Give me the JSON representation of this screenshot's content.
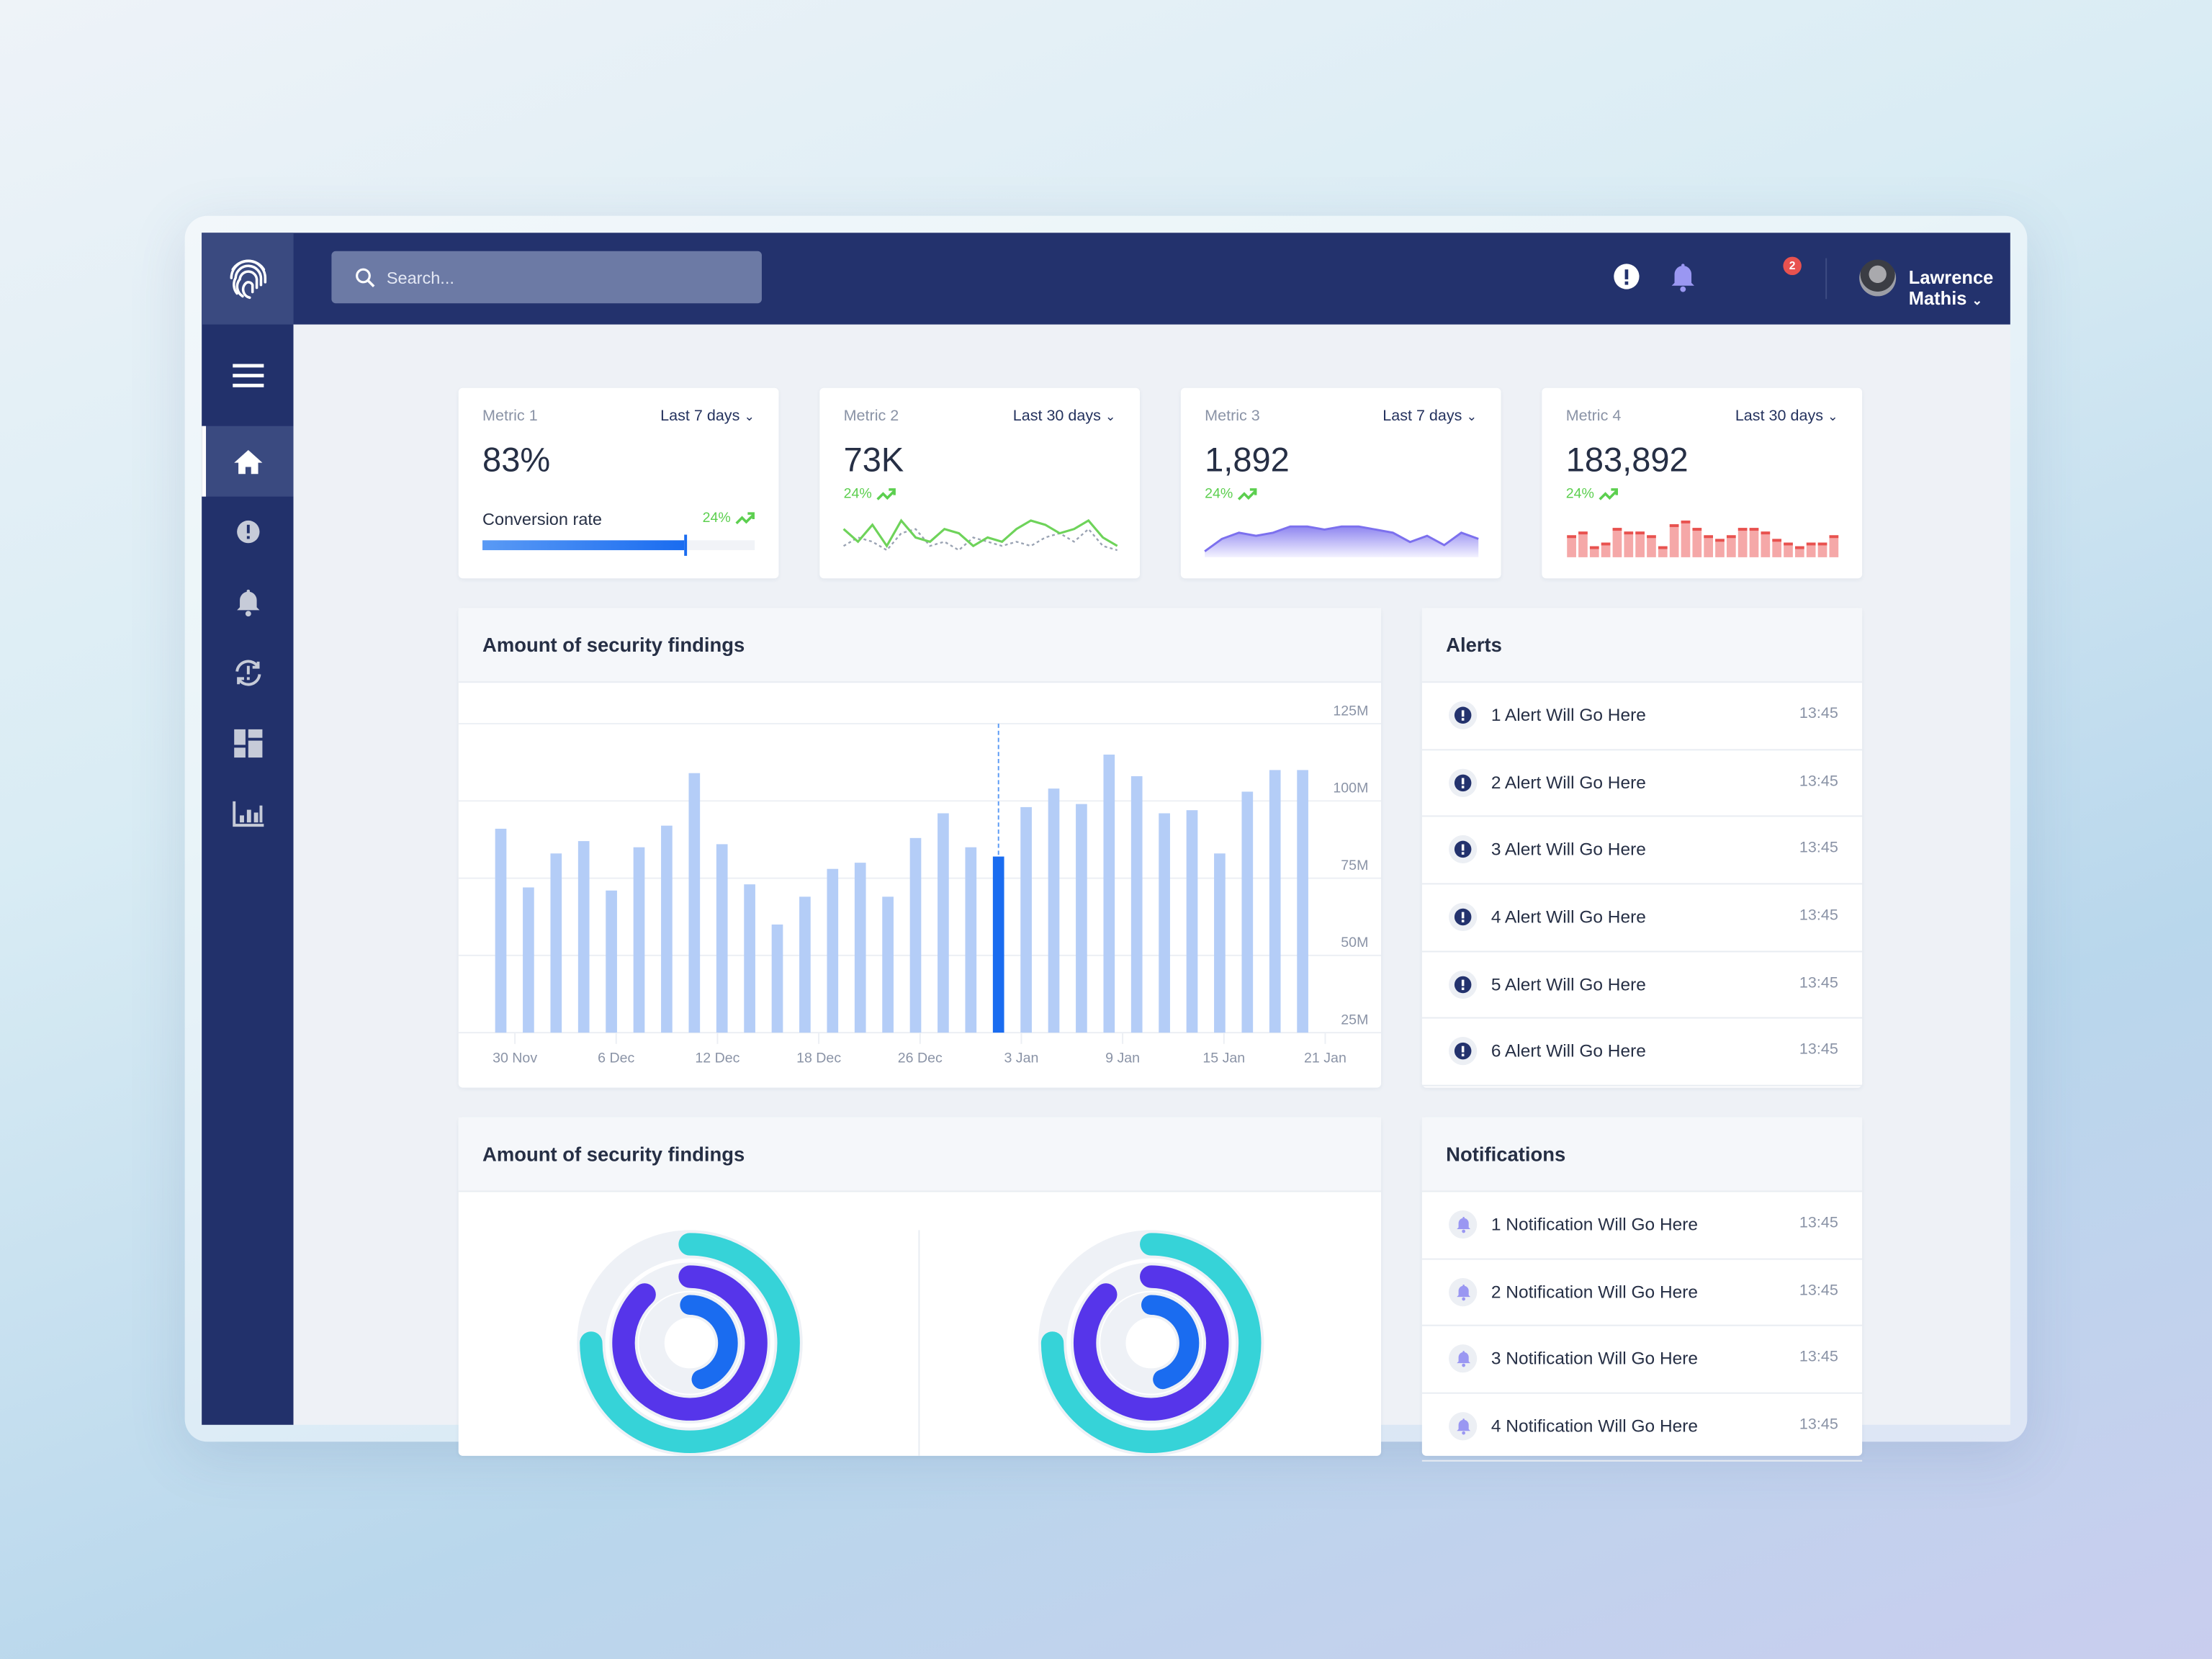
{
  "header": {
    "search_placeholder": "Search...",
    "notification_count": "2",
    "user_name": "Lawrence Mathis"
  },
  "sidebar": {
    "items": [
      {
        "icon": "home-icon",
        "active": true
      },
      {
        "icon": "alert-icon"
      },
      {
        "icon": "bell-icon"
      },
      {
        "icon": "sync-alert-icon"
      },
      {
        "icon": "dashboard-icon"
      },
      {
        "icon": "bar-chart-icon"
      }
    ]
  },
  "metrics": [
    {
      "label": "Metric 1",
      "range": "Last 7 days",
      "value": "83%",
      "sub_label": "Conversion rate",
      "delta": "24%",
      "progress_percent": 74
    },
    {
      "label": "Metric 2",
      "range": "Last 30 days",
      "value": "73K",
      "delta": "24%",
      "spark": [
        6,
        3,
        7,
        2,
        8,
        4,
        3,
        6,
        5,
        2,
        4,
        3,
        6,
        8,
        7,
        5,
        6,
        8,
        4,
        2
      ],
      "spark_dotted": [
        2,
        4,
        3,
        1,
        5,
        6,
        2,
        3,
        1,
        4,
        3,
        2,
        3,
        2,
        4,
        5,
        3,
        6,
        2,
        1
      ]
    },
    {
      "label": "Metric 3",
      "range": "Last 7 days",
      "value": "1,892",
      "delta": "24%",
      "area": [
        1,
        5,
        7,
        6,
        7,
        9,
        9,
        8,
        9,
        9,
        8,
        7,
        4,
        6,
        3,
        7,
        5
      ]
    },
    {
      "label": "Metric 4",
      "range": "Last 30 days",
      "value": "183,892",
      "delta": "24%",
      "bars": [
        6,
        7,
        3,
        4,
        8,
        7,
        7,
        6,
        3,
        9,
        10,
        8,
        6,
        5,
        6,
        8,
        8,
        7,
        5,
        4,
        3,
        4,
        4,
        6
      ]
    }
  ],
  "colors": {
    "navy": "#22316b",
    "accent_blue": "#1a6cf0",
    "bar_light": "#b4cdf7",
    "green": "#5ccf4f",
    "teal": "#36d3d8",
    "purple": "#5635ea",
    "red": "#f5a8a8"
  },
  "findings_chart": {
    "title": "Amount of security findings"
  },
  "chart_data": {
    "type": "bar",
    "title": "Amount of security findings",
    "y_ticks": [
      "125M",
      "100M",
      "75M",
      "50M",
      "25M"
    ],
    "ylim": [
      25,
      125
    ],
    "y_unit": "M",
    "x_ticks": [
      "30 Nov",
      "6 Dec",
      "12 Dec",
      "18 Dec",
      "26 Dec",
      "3 Jan",
      "9 Jan",
      "15 Jan",
      "21 Jan"
    ],
    "values": [
      91,
      72,
      83,
      87,
      71,
      85,
      92,
      109,
      86,
      73,
      60,
      69,
      78,
      80,
      69,
      88,
      96,
      85,
      82,
      98,
      104,
      99,
      115,
      108,
      96,
      97,
      83,
      103,
      110,
      110
    ],
    "highlighted_index": 18,
    "grid": true
  },
  "alerts": {
    "title": "Alerts",
    "items": [
      {
        "text": "1 Alert Will Go Here",
        "time": "13:45"
      },
      {
        "text": "2 Alert Will Go Here",
        "time": "13:45"
      },
      {
        "text": "3 Alert Will Go Here",
        "time": "13:45"
      },
      {
        "text": "4 Alert Will Go Here",
        "time": "13:45"
      },
      {
        "text": "5 Alert Will Go Here",
        "time": "13:45"
      },
      {
        "text": "6 Alert Will Go Here",
        "time": "13:45"
      }
    ]
  },
  "donut_card": {
    "title": "Amount of security findings",
    "donuts": [
      {
        "rings": [
          {
            "color": "#36d3d8",
            "percent": 75
          },
          {
            "color": "#5635ea",
            "percent": 88
          },
          {
            "color": "#1a6cf0",
            "percent": 45
          }
        ]
      },
      {
        "rings": [
          {
            "color": "#36d3d8",
            "percent": 75
          },
          {
            "color": "#5635ea",
            "percent": 88
          },
          {
            "color": "#1a6cf0",
            "percent": 45
          }
        ]
      }
    ]
  },
  "notifications": {
    "title": "Notifications",
    "items": [
      {
        "text": "1 Notification Will Go Here",
        "time": "13:45"
      },
      {
        "text": "2 Notification Will Go Here",
        "time": "13:45"
      },
      {
        "text": "3 Notification Will Go Here",
        "time": "13:45"
      },
      {
        "text": "4 Notification Will Go Here",
        "time": "13:45"
      }
    ]
  }
}
